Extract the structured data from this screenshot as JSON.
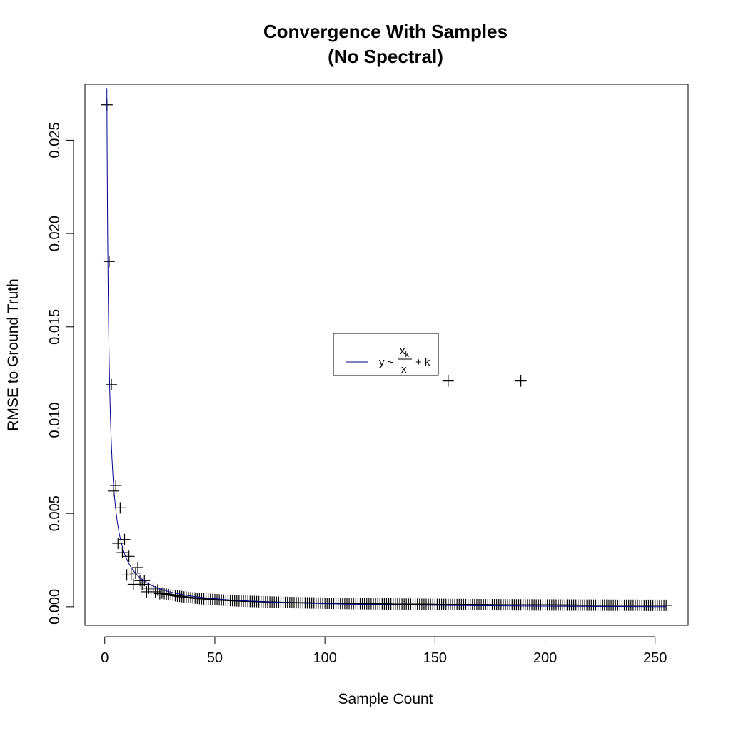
{
  "chart_data": {
    "type": "scatter",
    "title": "Convergence With Samples",
    "subtitle": "(No Spectral)",
    "xlabel": "Sample Count",
    "ylabel": "RMSE to Ground Truth",
    "xlim": [
      -9,
      265
    ],
    "ylim": [
      -0.001,
      0.028
    ],
    "xticks": [
      0,
      50,
      100,
      150,
      200,
      250
    ],
    "xtick_labels": [
      "0",
      "50",
      "100",
      "150",
      "200",
      "250"
    ],
    "yticks": [
      0,
      0.005,
      0.01,
      0.015,
      0.02,
      0.025
    ],
    "ytick_labels": [
      "0.000",
      "0.005",
      "0.010",
      "0.015",
      "0.020",
      "0.025"
    ],
    "grid": false,
    "marker": "+",
    "point_color": "#000000",
    "fit_color": "#00008b",
    "points_first": [
      [
        1,
        0.0269
      ],
      [
        2,
        0.0185
      ],
      [
        3,
        0.0119
      ],
      [
        4,
        0.0062
      ],
      [
        5,
        0.0065
      ],
      [
        6,
        0.0034
      ],
      [
        7,
        0.0053
      ],
      [
        8,
        0.0029
      ],
      [
        9,
        0.0036
      ],
      [
        10,
        0.0017
      ],
      [
        11,
        0.0027
      ],
      [
        12,
        0.0017
      ],
      [
        13,
        0.0012
      ],
      [
        14,
        0.0018
      ],
      [
        15,
        0.0021
      ],
      [
        16,
        0.0014
      ],
      [
        17,
        0.0012
      ],
      [
        18,
        0.0014
      ],
      [
        19,
        0.0008
      ],
      [
        20,
        0.001
      ],
      [
        21,
        0.0009
      ],
      [
        22,
        0.001
      ],
      [
        23,
        0.0008
      ],
      [
        24,
        0.0009
      ],
      [
        25,
        0.0007
      ]
    ],
    "points_rest": {
      "x_start": 26,
      "x_end": 255,
      "fit_xk": 0.019,
      "fit_k": 0.0
    },
    "outliers": [
      [
        156,
        0.0121
      ],
      [
        189,
        0.0121
      ]
    ],
    "fit": {
      "xk": 0.0265,
      "k": -0.0001,
      "x_from": 0.95,
      "x_to": 255
    },
    "legend": {
      "placement": "center",
      "lhs": "y ~",
      "numerator": "x",
      "numerator_sub": "k",
      "denominator": "x",
      "rhs": "+ k"
    }
  }
}
